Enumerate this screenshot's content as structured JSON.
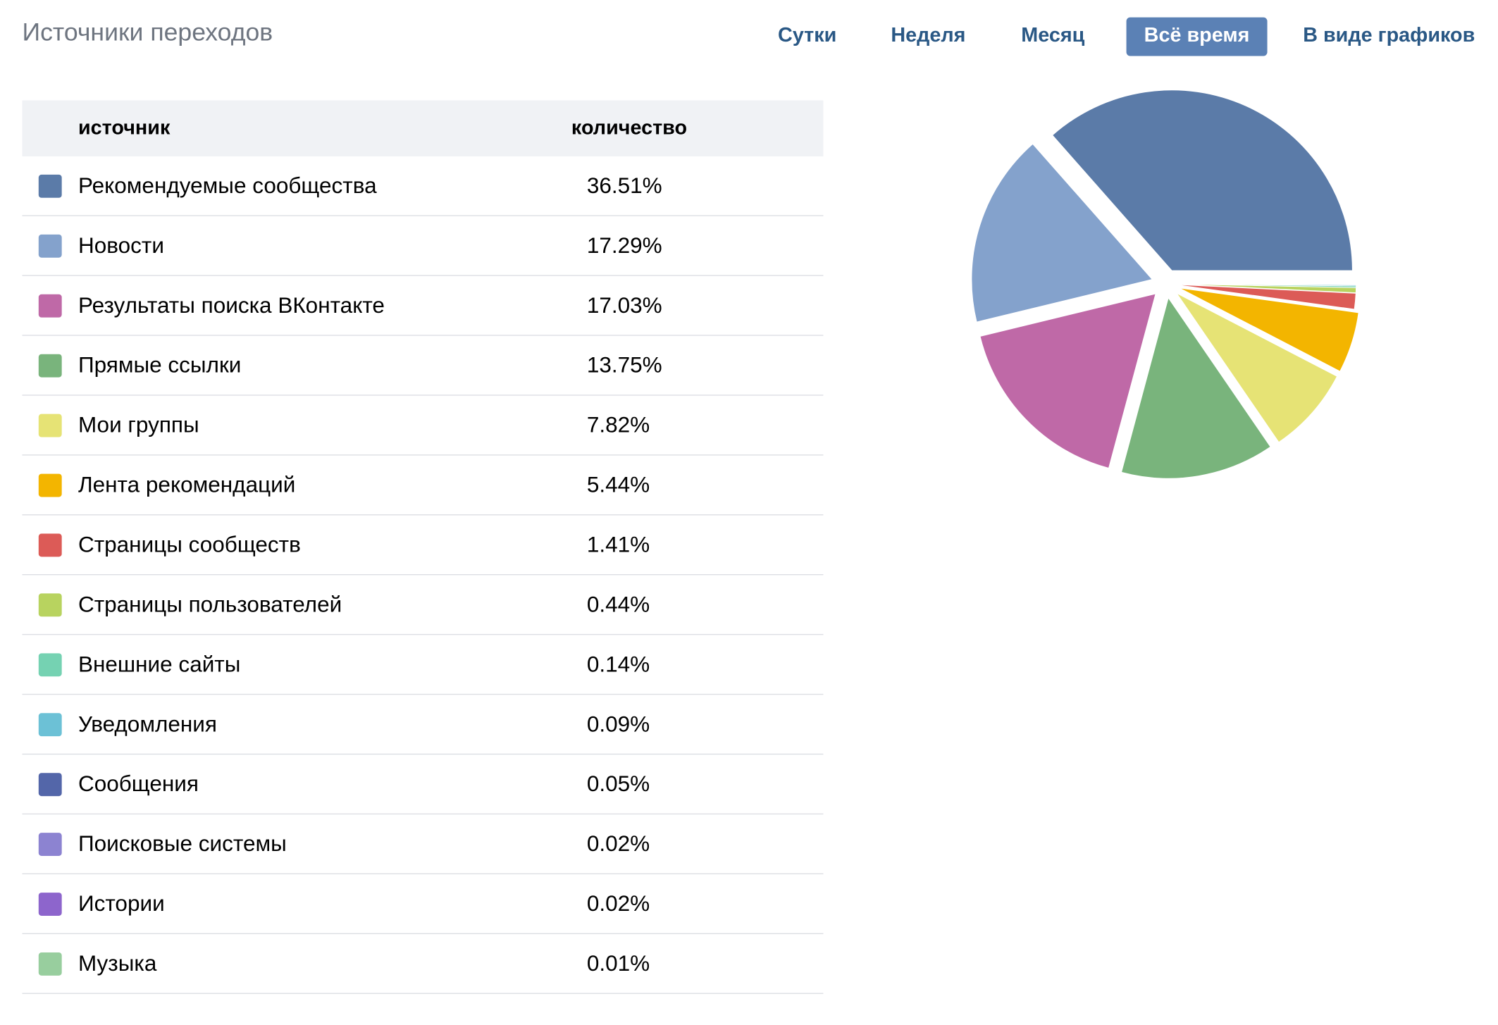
{
  "header": {
    "title": "Источники переходов"
  },
  "tabs": [
    {
      "label": "Сутки",
      "active": false
    },
    {
      "label": "Неделя",
      "active": false
    },
    {
      "label": "Месяц",
      "active": false
    },
    {
      "label": "Всё время",
      "active": true
    },
    {
      "label": "В виде графиков",
      "active": false
    }
  ],
  "table": {
    "col_source": "источник",
    "col_count": "количество"
  },
  "chart_data": {
    "type": "pie",
    "categories": [
      "Рекомендуемые сообщества",
      "Новости",
      "Результаты поиска ВКонтакте",
      "Прямые ссылки",
      "Мои группы",
      "Лента рекомендаций",
      "Страницы сообществ",
      "Страницы пользователей",
      "Внешние сайты",
      "Уведомления",
      "Сообщения",
      "Поисковые системы",
      "Истории",
      "Музыка"
    ],
    "values": [
      36.51,
      17.29,
      17.03,
      13.75,
      7.82,
      5.44,
      1.41,
      0.44,
      0.14,
      0.09,
      0.05,
      0.02,
      0.02,
      0.01
    ],
    "labels": [
      "36.51%",
      "17.29%",
      "17.03%",
      "13.75%",
      "7.82%",
      "5.44%",
      "1.41%",
      "0.44%",
      "0.14%",
      "0.09%",
      "0.05%",
      "0.02%",
      "0.02%",
      "0.01%"
    ],
    "colors": [
      "#5b7ba8",
      "#84a2cc",
      "#bf69a7",
      "#79b47c",
      "#e6e375",
      "#f3b500",
      "#dc5b57",
      "#b8d35f",
      "#75d2b2",
      "#6cc1d6",
      "#5366a9",
      "#8c83d1",
      "#8d65cc",
      "#98ce9e"
    ]
  }
}
